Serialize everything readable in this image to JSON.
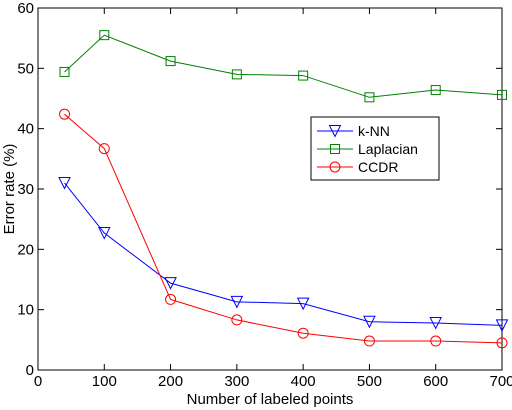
{
  "chart_data": {
    "type": "line",
    "title": "",
    "xlabel": "Number of labeled points",
    "ylabel": "Error rate (%)",
    "xlim": [
      0,
      700
    ],
    "ylim": [
      0,
      60
    ],
    "xticks": [
      0,
      100,
      200,
      300,
      400,
      500,
      600,
      700
    ],
    "yticks": [
      0,
      10,
      20,
      30,
      40,
      50,
      60
    ],
    "grid": false,
    "legend_position": "right",
    "series": [
      {
        "name": "k-NN",
        "color": "#0000ff",
        "marker": "triangle-down",
        "x": [
          40,
          100,
          200,
          300,
          400,
          500,
          600,
          700
        ],
        "y": [
          31,
          22.7,
          14.4,
          11.3,
          11.0,
          8.0,
          7.8,
          7.4
        ]
      },
      {
        "name": "Laplacian",
        "color": "#008000",
        "marker": "square",
        "x": [
          40,
          100,
          200,
          300,
          400,
          500,
          600,
          700
        ],
        "y": [
          49.4,
          55.5,
          51.2,
          49.0,
          48.8,
          45.2,
          46.4,
          45.6
        ]
      },
      {
        "name": "CCDR",
        "color": "#ff0000",
        "marker": "circle",
        "x": [
          40,
          100,
          200,
          300,
          400,
          500,
          600,
          700
        ],
        "y": [
          42.4,
          36.7,
          11.7,
          8.3,
          6.1,
          4.8,
          4.8,
          4.5
        ]
      }
    ]
  }
}
